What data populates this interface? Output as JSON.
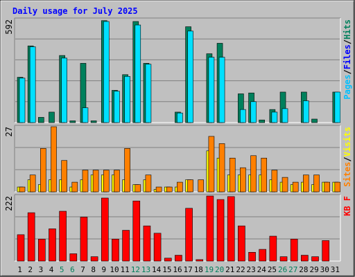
{
  "chart_data": {
    "type": "bar",
    "title": "Daily usage for July 2025",
    "colors": {
      "background": "#c0c0c0",
      "plot_bg": "#c0c0c0",
      "title": "#0000ff",
      "hits": "#00805c",
      "files": "#00e0ff",
      "pages": "#00c0ff",
      "visits": "#ffff00",
      "sites": "#ff8000",
      "kbytes": "#ff0000",
      "weekend_day": "#00805c",
      "weekday": "#000000"
    },
    "days": [
      "1",
      "2",
      "3",
      "4",
      "5",
      "6",
      "7",
      "8",
      "9",
      "10",
      "11",
      "12",
      "13",
      "14",
      "15",
      "16",
      "17",
      "18",
      "19",
      "20",
      "21",
      "22",
      "23",
      "24",
      "25",
      "26",
      "27",
      "28",
      "29",
      "30",
      "31"
    ],
    "weekend_days": [
      "5",
      "6",
      "12",
      "13",
      "19",
      "20",
      "26",
      "27"
    ],
    "panels": [
      {
        "id": "top",
        "ymax_label": "592",
        "ymax": 592,
        "right_label_parts": [
          {
            "text": "Pages",
            "color": "#00c0ff"
          },
          {
            "text": "/",
            "color": "#000000"
          },
          {
            "text": "Files",
            "color": "#0000ff"
          },
          {
            "text": "/",
            "color": "#000000"
          },
          {
            "text": "Hits",
            "color": "#00805c"
          }
        ],
        "series": [
          {
            "name": "Hits",
            "color": "#00805c",
            "values": [
              260,
              440,
              30,
              60,
              385,
              10,
              340,
              10,
              585,
              185,
              275,
              580,
              340,
              0,
              0,
              60,
              550,
              0,
              395,
              455,
              0,
              165,
              170,
              15,
              75,
              175,
              0,
              175,
              20,
              0,
              175
            ]
          },
          {
            "name": "Files",
            "color": "#00e0ff",
            "values": [
              255,
              435,
              0,
              0,
              370,
              0,
              85,
              0,
              580,
              180,
              265,
              560,
              335,
              0,
              0,
              55,
              525,
              0,
              375,
              375,
              0,
              75,
              120,
              0,
              60,
              80,
              0,
              125,
              0,
              0,
              175
            ]
          },
          {
            "name": "Pages",
            "color": "#00c0ff",
            "values": [
              0,
              0,
              0,
              0,
              0,
              0,
              0,
              0,
              0,
              0,
              0,
              0,
              0,
              0,
              0,
              0,
              0,
              0,
              0,
              0,
              0,
              0,
              0,
              0,
              0,
              0,
              0,
              0,
              0,
              0,
              0
            ]
          }
        ]
      },
      {
        "id": "middle",
        "ymax_label": "27",
        "ymax": 27,
        "right_label_parts": [
          {
            "text": "Sites",
            "color": "#ff8000"
          },
          {
            "text": "/",
            "color": "#000000"
          },
          {
            "text": "Visits",
            "color": "#ffff00"
          }
        ],
        "series": [
          {
            "name": "Visits",
            "color": "#ffff00",
            "values": [
              2,
              5,
              3,
              5,
              5,
              2,
              5,
              7,
              7,
              7,
              5,
              3,
              5,
              1,
              2,
              2,
              5,
              0,
              17,
              14,
              7,
              7,
              7,
              7,
              5,
              4,
              3,
              4,
              3,
              4,
              4
            ]
          },
          {
            "name": "Sites",
            "color": "#ff8000",
            "values": [
              2,
              7,
              18,
              27,
              13,
              4,
              9,
              9,
              9,
              9,
              18,
              3,
              7,
              2,
              2,
              4,
              5,
              5,
              23,
              20,
              14,
              10,
              15,
              14,
              9,
              6,
              4,
              7,
              7,
              4,
              4
            ]
          }
        ]
      },
      {
        "id": "bottom",
        "ymax_label": "222",
        "ymax": 222,
        "right_label_parts": [
          {
            "text": "KB F",
            "color": "#ff0000"
          }
        ],
        "series": [
          {
            "name": "KB F",
            "color": "#ff0000",
            "values": [
              90,
              165,
              75,
              110,
              170,
              25,
              150,
              15,
              215,
              75,
              105,
              205,
              120,
              95,
              10,
              20,
              180,
              5,
              225,
              210,
              220,
              120,
              30,
              40,
              85,
              15,
              75,
              20,
              15,
              70,
              0
            ]
          }
        ]
      }
    ]
  }
}
